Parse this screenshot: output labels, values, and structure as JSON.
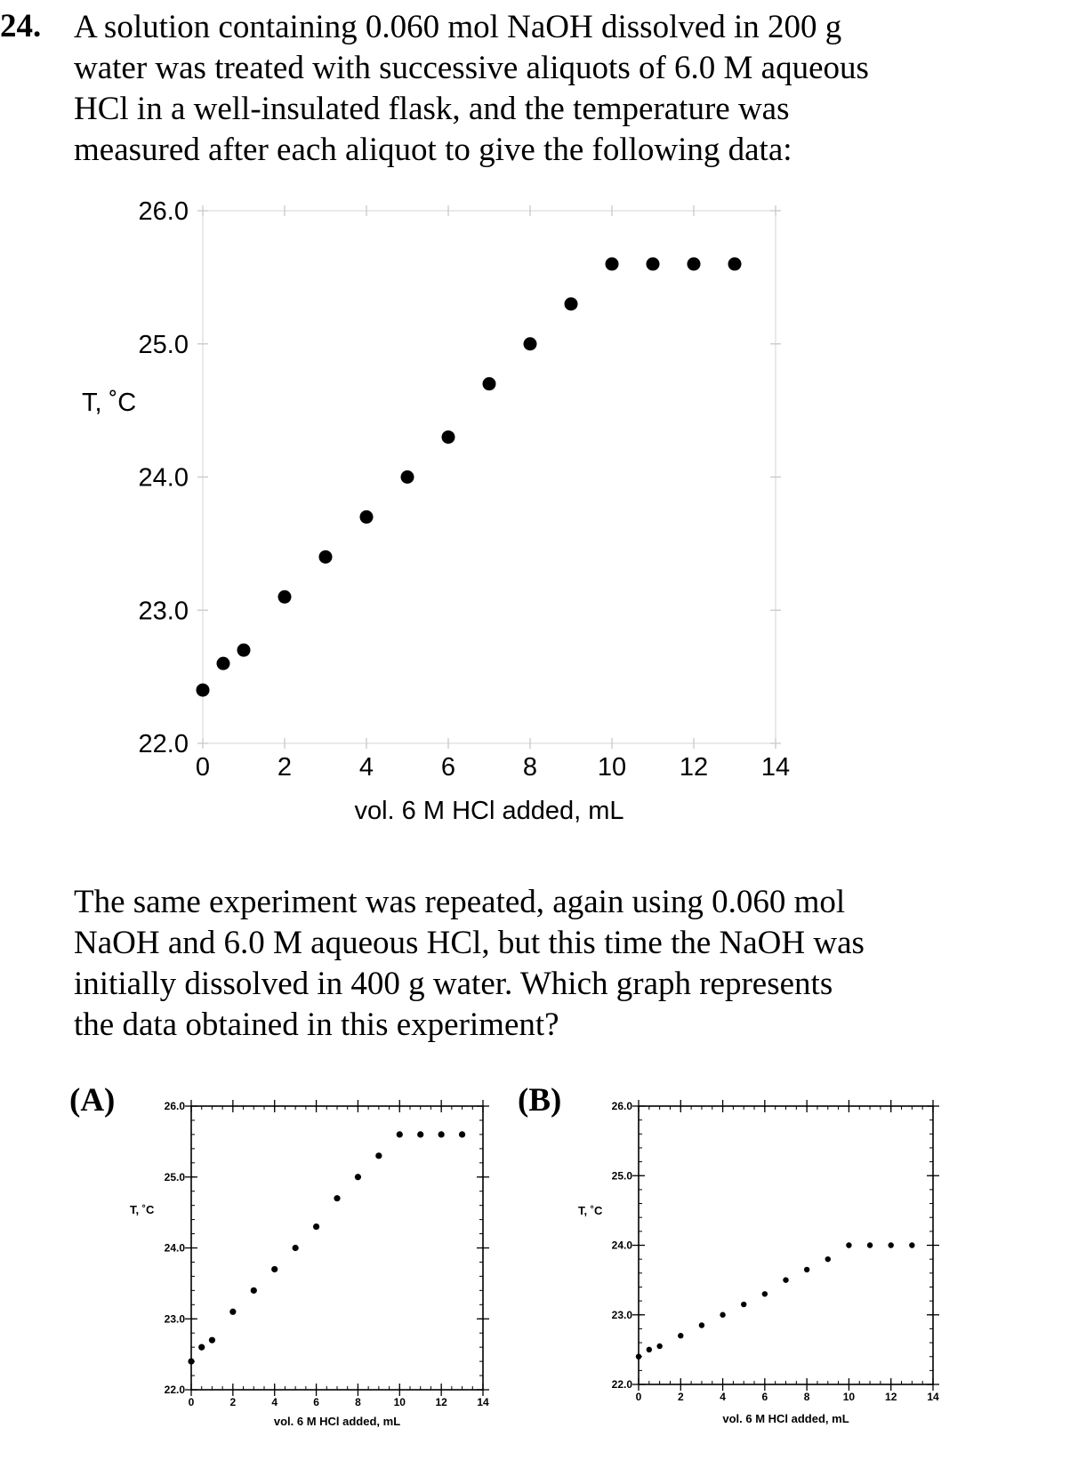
{
  "question_number": "24.",
  "intro_lines": [
    "A solution containing 0.060 mol NaOH dissolved in 200 g",
    "water was treated with successive aliquots of 6.0 M aqueous",
    "HCl in a well-insulated flask, and the temperature was",
    "measured after each aliquot to give the following data:"
  ],
  "followup_lines": [
    "The same experiment was repeated, again using 0.060 mol",
    "NaOH and 6.0 M aqueous HCl, but this time the NaOH was",
    "initially dissolved in 400 g water.  Which graph represents",
    "the data obtained in this experiment?"
  ],
  "options": {
    "a_label": "(A)",
    "b_label": "(B)"
  },
  "chart_data": [
    {
      "id": "main",
      "type": "scatter",
      "xlabel": "vol. 6 M HCl added, mL",
      "ylabel": "T, ˚C",
      "xlim": [
        0,
        14
      ],
      "ylim": [
        22.0,
        26.0
      ],
      "x_ticks": [
        "0",
        "2",
        "4",
        "6",
        "8",
        "10",
        "12",
        "14"
      ],
      "y_ticks": [
        "22.0",
        "23.0",
        "24.0",
        "25.0",
        "26.0"
      ],
      "grid": false,
      "x": [
        0,
        0.5,
        1,
        2,
        3,
        4,
        5,
        6,
        7,
        8,
        9,
        10,
        11,
        12,
        13
      ],
      "y": [
        22.4,
        22.6,
        22.7,
        23.1,
        23.4,
        23.7,
        24.0,
        24.3,
        24.7,
        25.0,
        25.3,
        25.6,
        25.6,
        25.6,
        25.6
      ]
    },
    {
      "id": "A",
      "type": "scatter",
      "xlabel": "vol. 6 M HCl added, mL",
      "ylabel": "T, ˚C",
      "xlim": [
        0,
        14
      ],
      "ylim": [
        22.0,
        26.0
      ],
      "x_ticks": [
        "0",
        "2",
        "4",
        "6",
        "8",
        "10",
        "12",
        "14"
      ],
      "y_ticks": [
        "22.0",
        "23.0",
        "24.0",
        "25.0",
        "26.0"
      ],
      "grid": false,
      "x": [
        0,
        0.5,
        1,
        2,
        3,
        4,
        5,
        6,
        7,
        8,
        9,
        10,
        11,
        12,
        13
      ],
      "y": [
        22.4,
        22.6,
        22.7,
        23.1,
        23.4,
        23.7,
        24.0,
        24.3,
        24.7,
        25.0,
        25.3,
        25.6,
        25.6,
        25.6,
        25.6
      ]
    },
    {
      "id": "B",
      "type": "scatter",
      "xlabel": "vol. 6 M HCl added, mL",
      "ylabel": "T, ˚C",
      "xlim": [
        0,
        14
      ],
      "ylim": [
        22.0,
        26.0
      ],
      "x_ticks": [
        "0",
        "2",
        "4",
        "6",
        "8",
        "10",
        "12",
        "14"
      ],
      "y_ticks": [
        "22.0",
        "23.0",
        "24.0",
        "25.0",
        "26.0"
      ],
      "grid": false,
      "x": [
        0,
        0.5,
        1,
        2,
        3,
        4,
        5,
        6,
        7,
        8,
        9,
        10,
        11,
        12,
        13
      ],
      "y": [
        22.4,
        22.5,
        22.55,
        22.7,
        22.85,
        23.0,
        23.15,
        23.3,
        23.5,
        23.65,
        23.8,
        24.0,
        24.0,
        24.0,
        24.0
      ]
    }
  ]
}
